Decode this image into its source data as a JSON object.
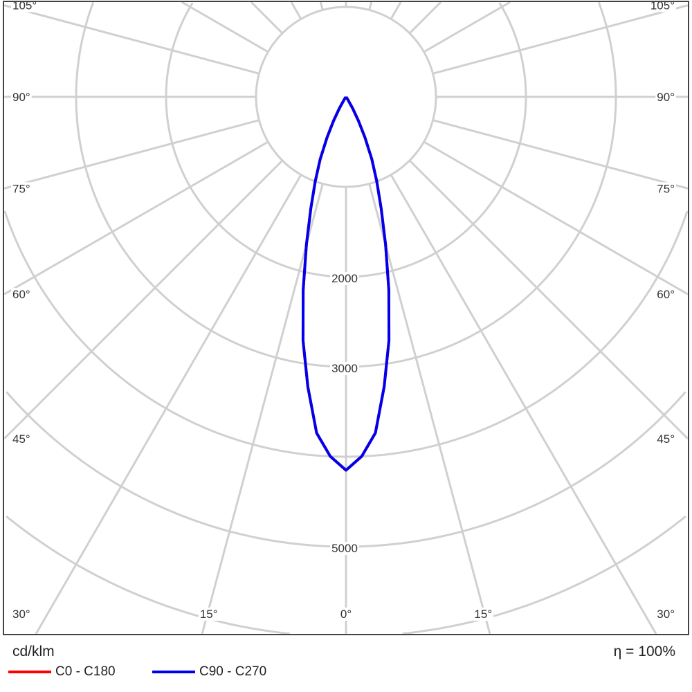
{
  "chart_data": {
    "type": "polar",
    "unit_label": "cd/klm",
    "efficiency_label": "η = 100%",
    "radial_ticks": [
      1000,
      2000,
      3000,
      4000,
      5000,
      6000
    ],
    "radial_tick_labels": [
      "2000",
      "3000",
      "5000"
    ],
    "radial_tick_label_values": [
      2000,
      3000,
      5000
    ],
    "angle_step_deg": 15,
    "side_angle_labels": [
      "105°",
      "90°",
      "75°",
      "60°",
      "45°",
      "30°"
    ],
    "side_angle_values": [
      105,
      90,
      75,
      60,
      45,
      30
    ],
    "bottom_angle_labels": [
      "15°",
      "0°",
      "15°"
    ],
    "bottom_angle_values": [
      -15,
      0,
      15
    ],
    "grid": true,
    "legend_placement": "bottom-left",
    "angles_deg": [
      0,
      2.5,
      5,
      7.5,
      10,
      12.5,
      15,
      17.5,
      20,
      22.5,
      25,
      27.5,
      30,
      35,
      40
    ],
    "series": [
      {
        "name": "C0 - C180",
        "color": "#ff0000",
        "values": [
          4150,
          4000,
          3750,
          3250,
          2750,
          2200,
          1700,
          1300,
          1000,
          750,
          500,
          300,
          150,
          30,
          0
        ]
      },
      {
        "name": "C90 - C270",
        "color": "#0000ee",
        "values": [
          4150,
          4000,
          3750,
          3250,
          2750,
          2200,
          1700,
          1300,
          1000,
          750,
          500,
          300,
          150,
          30,
          0
        ]
      }
    ]
  }
}
